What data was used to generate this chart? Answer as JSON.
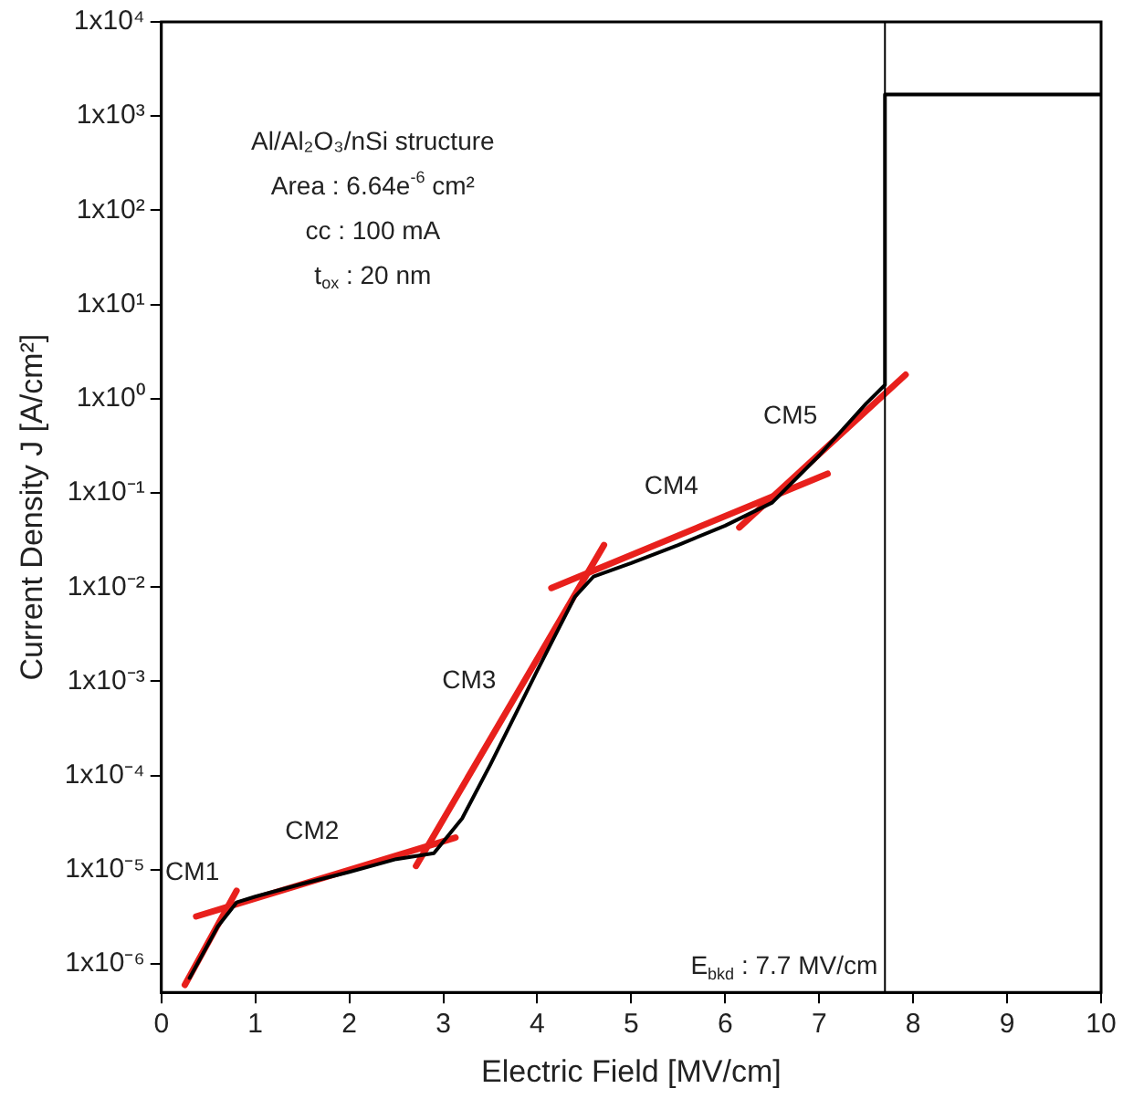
{
  "chart_data": {
    "type": "line",
    "xlabel": "Electric Field [MV/cm]",
    "ylabel": "Current Density J [A/cm²]",
    "log": "y",
    "xlim": [
      0,
      10
    ],
    "xticks": [
      0,
      1,
      2,
      3,
      4,
      5,
      6,
      7,
      8,
      9,
      10
    ],
    "ylim": [
      5e-07,
      10000
    ],
    "yticks": [
      {
        "value": 1e-06,
        "label": "1x10⁻⁶"
      },
      {
        "value": 1e-05,
        "label": "1x10⁻⁵"
      },
      {
        "value": 0.0001,
        "label": "1x10⁻⁴"
      },
      {
        "value": 0.001,
        "label": "1x10⁻³"
      },
      {
        "value": 0.01,
        "label": "1x10⁻²"
      },
      {
        "value": 0.1,
        "label": "1x10⁻¹"
      },
      {
        "value": 1,
        "label": "1x10⁰"
      },
      {
        "value": 10,
        "label": "1x10¹"
      },
      {
        "value": 100,
        "label": "1x10²"
      },
      {
        "value": 1000,
        "label": "1x10³"
      },
      {
        "value": 10000,
        "label": "1x10⁴"
      }
    ],
    "grid": false,
    "legend": false,
    "marker": "none",
    "line_style": "solid",
    "x": [
      0.3,
      0.6,
      0.8,
      1.0,
      1.5,
      2.0,
      2.5,
      2.9,
      3.2,
      3.5,
      4.0,
      4.4,
      4.6,
      5.0,
      5.5,
      6.0,
      6.5,
      7.0,
      7.5,
      7.7,
      7.7,
      10
    ],
    "series": [
      {
        "color": "#000000",
        "values": [
          7.1e-07,
          2.5e-06,
          4.5e-06,
          5.2e-06,
          7.1e-06,
          9.5e-06,
          1.3e-05,
          1.5e-05,
          3.5e-05,
          0.00013,
          0.0013,
          0.0079,
          0.013,
          0.018,
          0.028,
          0.045,
          0.079,
          0.25,
          0.89,
          1.4,
          1700,
          1700
        ]
      },
      {
        "name": "CM1",
        "color": "#e8201c",
        "x": [
          0.25,
          0.8
        ],
        "values": [
          6e-07,
          6e-06
        ]
      },
      {
        "name": "CM2",
        "color": "#e8201c",
        "x": [
          0.37,
          3.13
        ],
        "values": [
          3.2e-06,
          2.2e-05
        ]
      },
      {
        "name": "CM3",
        "color": "#e8201c",
        "x": [
          2.71,
          4.71
        ],
        "values": [
          1.1e-05,
          0.028
        ]
      },
      {
        "name": "CM4",
        "color": "#e8201c",
        "x": [
          4.15,
          7.09
        ],
        "values": [
          0.0098,
          0.16
        ]
      },
      {
        "name": "CM5",
        "color": "#e8201c",
        "x": [
          6.15,
          7.92
        ],
        "values": [
          0.043,
          1.8
        ]
      }
    ],
    "ref_lines": [
      {
        "axis": "x",
        "value": 7.7,
        "label": "E$_{bkd}$ : 7.7 MV/cm",
        "color": "#000000"
      }
    ],
    "annotations": [
      "Al/Al₂O₃/nSi structure",
      "Area : 6.64e$^{-6}$ cm²",
      "cc : 100 mA",
      "t$_{ox}$ : 20 nm"
    ]
  }
}
